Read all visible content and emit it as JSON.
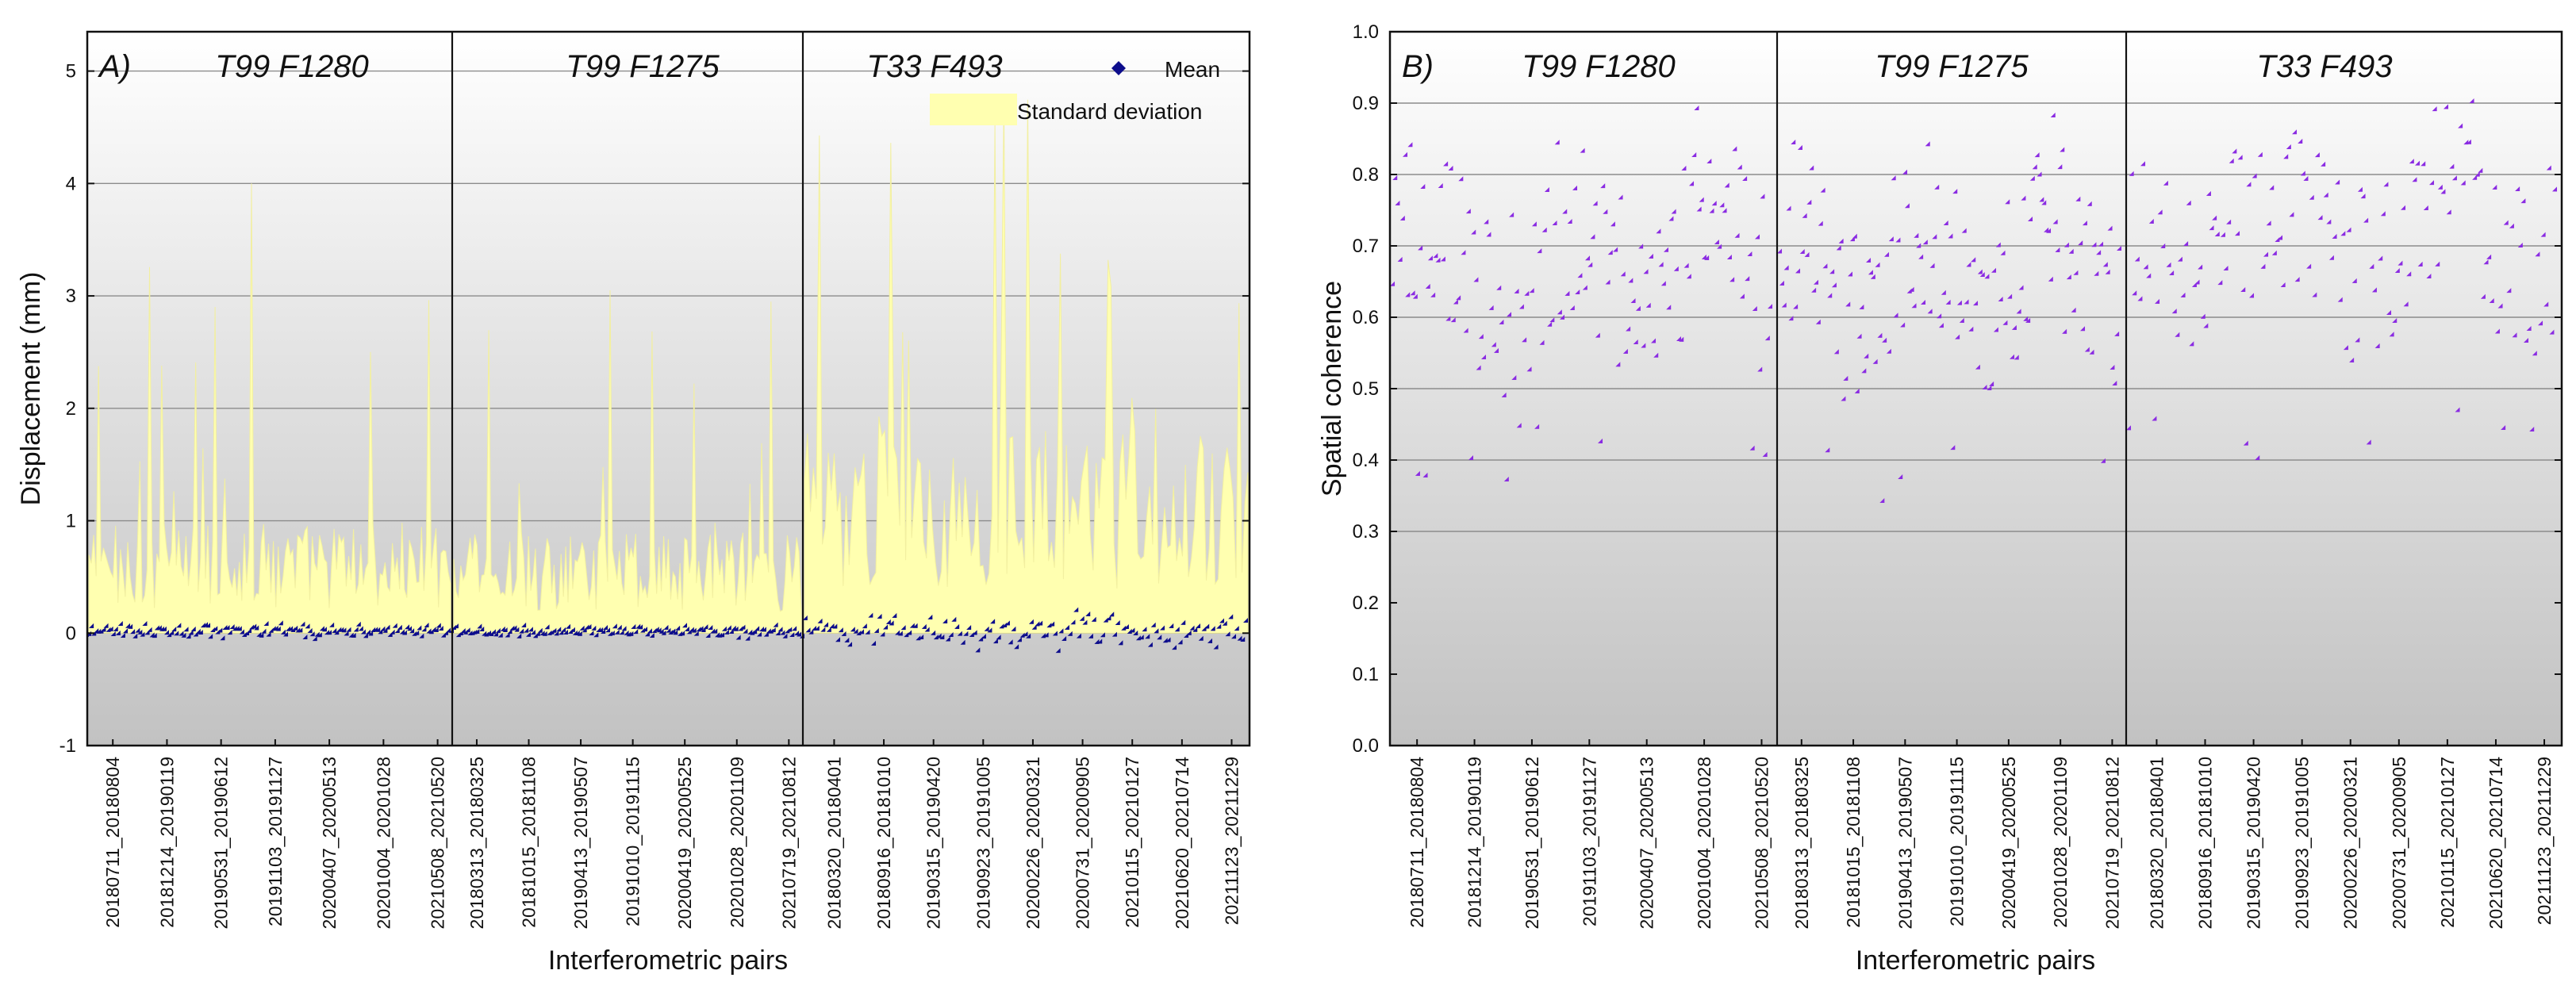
{
  "colors": {
    "std_fill": "#ffffb0",
    "std_stroke": "#f2efa0",
    "mean_marker": "#0d0d8c",
    "coherence_marker": "#8a2be2",
    "grad_top": "#ffffff",
    "grad_bottom": "#c2c2c2",
    "grid": "#8c8c8c",
    "axis": "#111111"
  },
  "chart_data": [
    {
      "panel_label": "A)",
      "type": "scatter+area",
      "title": "",
      "xlabel": "Interferometric pairs",
      "ylabel": "Displacement (mm)",
      "ylim": [
        -1,
        5.35
      ],
      "yticks": [
        -1,
        0,
        1,
        2,
        3,
        4,
        5
      ],
      "grid_y": [
        0,
        1,
        2,
        3,
        4,
        5
      ],
      "segments": [
        "T99 F1280",
        "T99 F1275",
        "T33 F493"
      ],
      "segment_pair_counts": [
        150,
        150,
        150
      ],
      "x_tick_labels": [
        "20180711_20180804",
        "20181214_20190119",
        "20190531_20190612",
        "20191103_20191127",
        "20200407_20200513",
        "20201004_20201028",
        "20210508_20210520",
        "20180313_20180325",
        "20181015_20181108",
        "20190413_20190507",
        "20191010_20191115",
        "20200419_20200525",
        "20201028_20201109",
        "20210719_20210812",
        "20180320_20180401",
        "20180916_20181010",
        "20190315_20190420",
        "20190923_20191005",
        "20200226_20200321",
        "20200731_20200905",
        "20210115_20210127",
        "20210620_20210714",
        "20211123_20211229"
      ],
      "legend": [
        {
          "name": "Mean",
          "marker": "diamond"
        },
        {
          "name": "Standard deviation",
          "marker": "area"
        }
      ],
      "series_summary": {
        "Mean": {
          "T99 F1280": {
            "center": 0.0,
            "spread": 0.06
          },
          "T99 F1275": {
            "center": 0.0,
            "spread": 0.05
          },
          "T33 F493": {
            "center": 0.0,
            "spread": 0.16
          }
        },
        "Standard deviation": {
          "T99 F1280": {
            "typical": 0.6,
            "max": 4.0
          },
          "T99 F1275": {
            "typical": 0.55,
            "max": 3.05
          },
          "T33 F493": {
            "typical": 1.1,
            "max": 4.75
          }
        }
      }
    },
    {
      "panel_label": "B)",
      "type": "scatter",
      "title": "",
      "xlabel": "Interferometric pairs",
      "ylabel": "Spatial coherence",
      "ylim": [
        0.0,
        1.0
      ],
      "yticks": [
        0.0,
        0.1,
        0.2,
        0.3,
        0.4,
        0.5,
        0.6,
        0.7,
        0.8,
        0.9,
        1.0
      ],
      "grid_y": [
        0.3,
        0.4,
        0.5,
        0.6,
        0.7,
        0.8,
        0.9
      ],
      "segments": [
        "T99 F1280",
        "T99 F1275",
        "T33 F493"
      ],
      "segment_pair_counts": [
        150,
        150,
        150
      ],
      "x_tick_labels": [
        "20180711_20180804",
        "20181214_20190119",
        "20190531_20190612",
        "20191103_20191127",
        "20200407_20200513",
        "20201004_20201028",
        "20210508_20210520",
        "20180313_20180325",
        "20181015_20181108",
        "20190413_20190507",
        "20191010_20191115",
        "20200419_20200525",
        "20201028_20201109",
        "20210719_20210812",
        "20180320_20180401",
        "20180916_20181010",
        "20190315_20190420",
        "20190923_20191005",
        "20200226_20200321",
        "20200731_20200905",
        "20210115_20210127",
        "20210620_20210714",
        "20211123_20211229"
      ],
      "series_summary": {
        "Spatial coherence": {
          "T99 F1280": {
            "min": 0.37,
            "max": 0.89,
            "typical": 0.67
          },
          "T99 F1275": {
            "min": 0.34,
            "max": 0.88,
            "typical": 0.66
          },
          "T33 F493": {
            "min": 0.4,
            "max": 0.9,
            "typical": 0.71
          }
        }
      }
    }
  ]
}
